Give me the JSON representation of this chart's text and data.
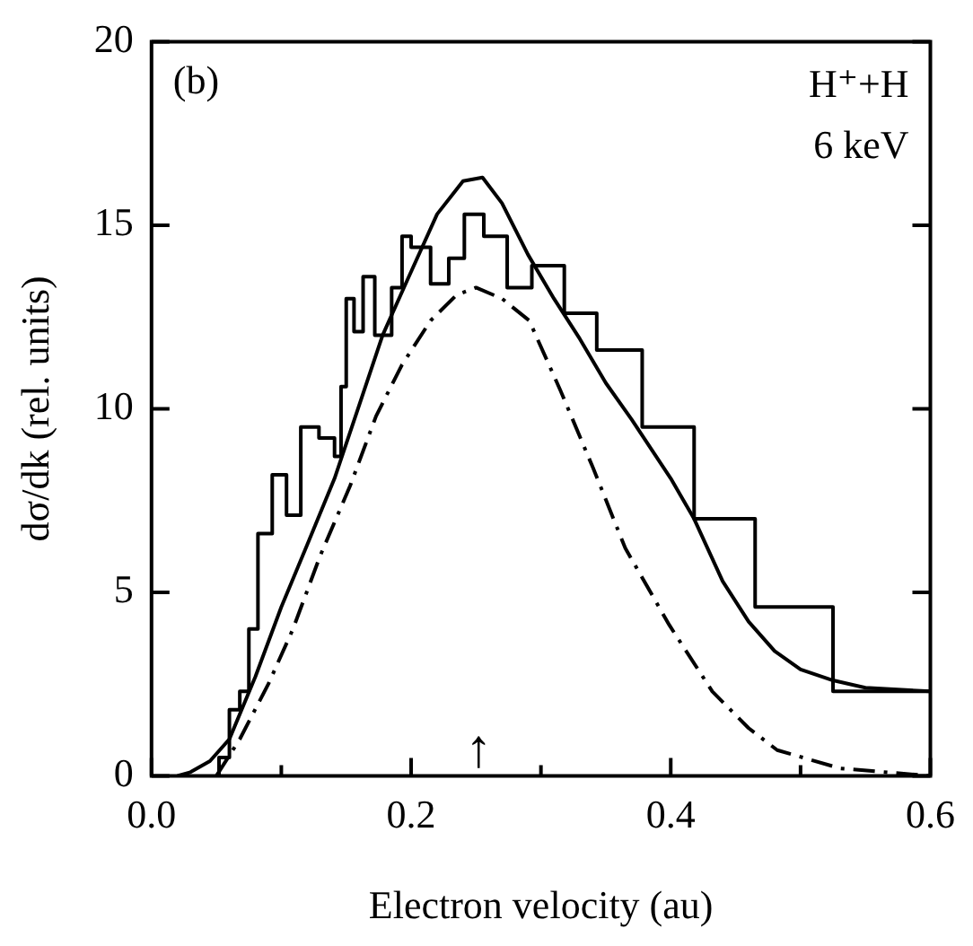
{
  "chart_data": {
    "type": "histogram",
    "xlabel": "Electron velocity (au)",
    "ylabel": "dσ/dk (rel. units)",
    "annotations": [
      "(b)",
      "H⁺+H",
      "6 keV",
      "↑"
    ],
    "color": "#000000",
    "bins": [
      0.052,
      0.06,
      0.068,
      0.075,
      0.082,
      0.093,
      0.104,
      0.115,
      0.129,
      0.141,
      0.146,
      0.15,
      0.156,
      0.163,
      0.172,
      0.185,
      0.193,
      0.2,
      0.215,
      0.229,
      0.241,
      0.256,
      0.274,
      0.293,
      0.318,
      0.343,
      0.378,
      0.418,
      0.465,
      0.525,
      0.6
    ],
    "values": [
      0.5,
      1.8,
      2.3,
      4.0,
      6.6,
      8.2,
      7.1,
      9.5,
      9.2,
      8.7,
      10.6,
      13.0,
      12.1,
      13.6,
      12.0,
      13.3,
      14.7,
      14.4,
      13.4,
      14.1,
      15.3,
      14.7,
      13.3,
      13.9,
      12.6,
      11.6,
      9.5,
      7.0,
      4.6,
      2.3
    ],
    "series": [
      {
        "type": "line",
        "color": "#000000",
        "line_style": "solid",
        "x": [
          0.02,
          0.03,
          0.045,
          0.06,
          0.08,
          0.1,
          0.12,
          0.141,
          0.16,
          0.178,
          0.197,
          0.22,
          0.24,
          0.255,
          0.27,
          0.29,
          0.31,
          0.33,
          0.35,
          0.37,
          0.4,
          0.418,
          0.44,
          0.46,
          0.48,
          0.5,
          0.525,
          0.55,
          0.6
        ],
        "values": [
          0,
          0.1,
          0.4,
          1.0,
          2.7,
          4.6,
          6.3,
          8.1,
          10.1,
          12.0,
          13.5,
          15.3,
          16.2,
          16.3,
          15.6,
          14.2,
          13.0,
          11.9,
          10.7,
          9.7,
          8.1,
          7.0,
          5.3,
          4.2,
          3.4,
          2.9,
          2.6,
          2.4,
          2.3
        ]
      },
      {
        "type": "line",
        "color": "#000000",
        "line_style": "dashed",
        "x": [
          0.05,
          0.068,
          0.09,
          0.109,
          0.13,
          0.153,
          0.173,
          0.193,
          0.215,
          0.235,
          0.25,
          0.27,
          0.291,
          0.315,
          0.34,
          0.365,
          0.399,
          0.432,
          0.46,
          0.482,
          0.531,
          0.6
        ],
        "values": [
          0,
          1.0,
          2.5,
          4.0,
          6.0,
          7.9,
          9.8,
          11.2,
          12.4,
          13.1,
          13.3,
          13.0,
          12.4,
          10.5,
          8.4,
          6.2,
          4.1,
          2.3,
          1.3,
          0.7,
          0.2,
          0
        ]
      }
    ],
    "xlim": [
      0,
      0.6
    ],
    "xticks": [
      {
        "value": 0,
        "label": "0.0"
      },
      {
        "value": 0.1,
        "label": null
      },
      {
        "value": 0.2,
        "label": "0.2"
      },
      {
        "value": 0.3,
        "label": null
      },
      {
        "value": 0.4,
        "label": "0.4"
      },
      {
        "value": 0.5,
        "label": null
      },
      {
        "value": 0.6,
        "label": "0.6"
      }
    ],
    "ylim": [
      0,
      20
    ],
    "yticks": [
      0,
      5,
      10,
      15,
      20
    ],
    "grid": false,
    "legend": false,
    "marker": "none"
  }
}
